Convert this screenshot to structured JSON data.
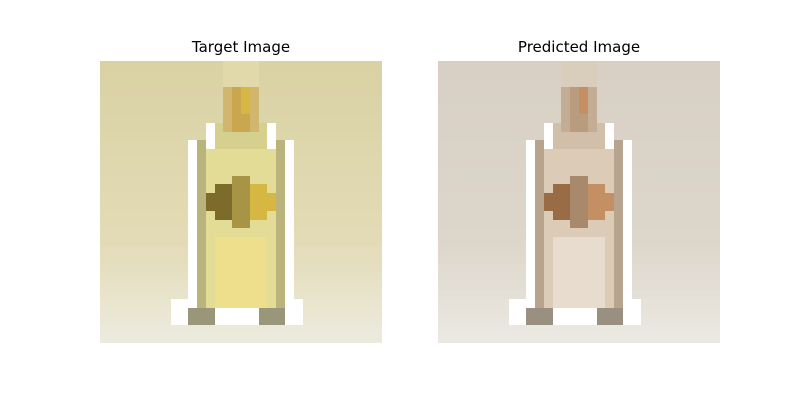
{
  "figure": {
    "panels": [
      {
        "title": "Target Image",
        "palette": {
          "bg_top": "#d9d2a4",
          "bg_mid": "#e3dbb6",
          "bg_bottom": "#eceadd",
          "bottle_body": "#e3dc97",
          "bottle_edge": "#b9b37c",
          "bottle_neck": "#c8a74e",
          "cap": "#ebe9c8",
          "label_dark": "#7d6b2c",
          "label_gold": "#d6b742",
          "label_mid": "#a89445",
          "liquid_light": "#eedf8c",
          "shadow": "#9a9679"
        }
      },
      {
        "title": "Predicted Image",
        "palette": {
          "bg_top": "#d8d0c5",
          "bg_mid": "#ddd6ca",
          "bg_bottom": "#ebe8e2",
          "bottle_body": "#dccbb6",
          "bottle_edge": "#b7a48f",
          "bottle_neck": "#b99c7e",
          "cap": "#e3ddd0",
          "label_dark": "#9a6c46",
          "label_gold": "#c48f62",
          "label_mid": "#a9896c",
          "liquid_light": "#e7dccd",
          "shadow": "#9a9082"
        }
      }
    ]
  }
}
